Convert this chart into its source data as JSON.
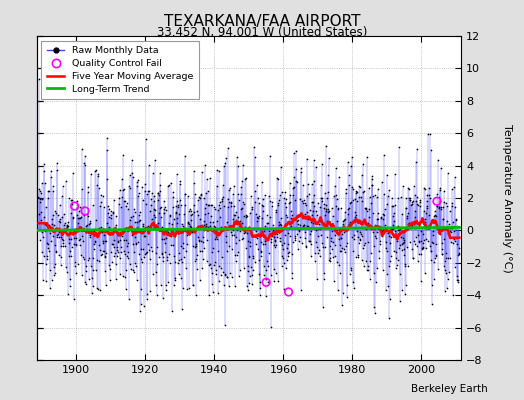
{
  "title": "TEXARKANA/FAA AIRPORT",
  "subtitle": "33.452 N, 94.001 W (United States)",
  "ylabel": "Temperature Anomaly (°C)",
  "credit": "Berkeley Earth",
  "start_year": 1889,
  "end_year": 2011,
  "ylim": [
    -8,
    12
  ],
  "yticks": [
    -8,
    -6,
    -4,
    -2,
    0,
    2,
    4,
    6,
    8,
    10,
    12
  ],
  "xticks": [
    1900,
    1920,
    1940,
    1960,
    1980,
    2000
  ],
  "qc_fail_points": [
    [
      1899.5,
      1.5
    ],
    [
      1902.5,
      1.2
    ],
    [
      1955.0,
      -3.2
    ],
    [
      1961.5,
      -3.8
    ],
    [
      2004.5,
      1.8
    ]
  ],
  "bg_color": "#e0e0e0",
  "plot_bg_color": "#ffffff",
  "line_color": "#4444ff",
  "marker_color": "#000000",
  "ma_color": "#ff0000",
  "trend_color": "#00bb00",
  "qc_color": "#ff00ff",
  "seed": 137
}
